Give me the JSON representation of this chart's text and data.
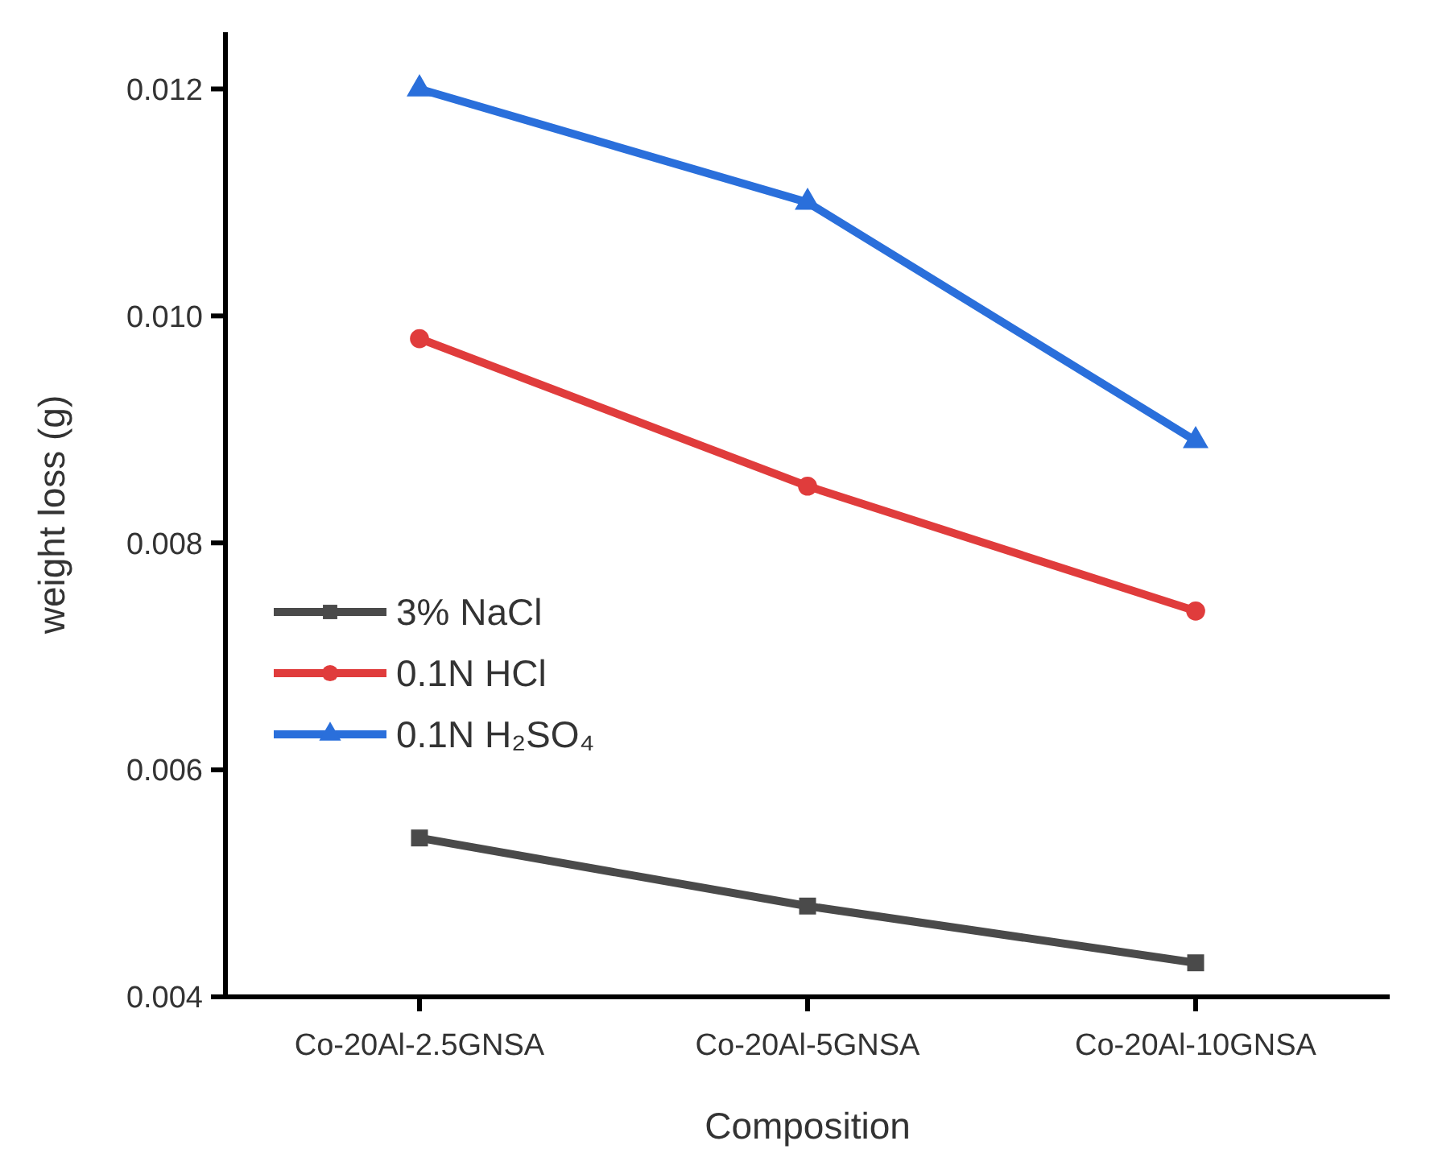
{
  "chart_data": {
    "type": "line",
    "xlabel": "Composition",
    "ylabel": "weight loss (g)",
    "categories": [
      "Co-20Al-2.5GNSA",
      "Co-20Al-5GNSA",
      "Co-20Al-10GNSA"
    ],
    "series": [
      {
        "name": "3% NaCl",
        "color": "#4a4a4a",
        "marker": "square",
        "values": [
          0.0054,
          0.0048,
          0.0043
        ]
      },
      {
        "name": "0.1N HCl",
        "color": "#e03c3c",
        "marker": "circle",
        "values": [
          0.0098,
          0.0085,
          0.0074
        ]
      },
      {
        "name": "0.1N H₂SO₄",
        "color": "#2a6fdb",
        "marker": "triangle",
        "values": [
          0.012,
          0.011,
          0.0089
        ]
      }
    ],
    "ylim": [
      0.004,
      0.0125
    ],
    "yticks": [
      {
        "value": 0.004,
        "label": "0.004"
      },
      {
        "value": 0.006,
        "label": "0.006"
      },
      {
        "value": 0.008,
        "label": "0.008"
      },
      {
        "value": 0.01,
        "label": "0.010"
      },
      {
        "value": 0.012,
        "label": "0.012"
      }
    ],
    "legend": "left",
    "grid": false
  }
}
